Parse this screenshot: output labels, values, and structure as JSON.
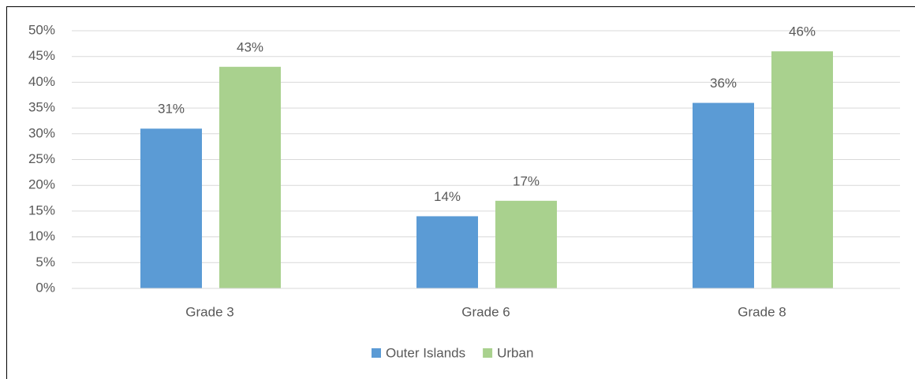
{
  "chart_data": {
    "type": "bar",
    "categories": [
      "Grade 3",
      "Grade 6",
      "Grade 8"
    ],
    "series": [
      {
        "name": "Outer Islands",
        "color": "#5b9bd5",
        "values": [
          31,
          14,
          36
        ],
        "value_labels": [
          "31%",
          "14%",
          "36%"
        ]
      },
      {
        "name": "Urban",
        "color": "#a9d18e",
        "values": [
          43,
          17,
          46
        ],
        "value_labels": [
          "43%",
          "17%",
          "46%"
        ]
      }
    ],
    "ylim": [
      0,
      50
    ],
    "yticks": [
      {
        "value": 0,
        "label": "0%"
      },
      {
        "value": 5,
        "label": "5%"
      },
      {
        "value": 10,
        "label": "10%"
      },
      {
        "value": 15,
        "label": "15%"
      },
      {
        "value": 20,
        "label": "20%"
      },
      {
        "value": 25,
        "label": "25%"
      },
      {
        "value": 30,
        "label": "30%"
      },
      {
        "value": 35,
        "label": "35%"
      },
      {
        "value": 40,
        "label": "40%"
      },
      {
        "value": 45,
        "label": "45%"
      },
      {
        "value": 50,
        "label": "50%"
      }
    ],
    "grid": true,
    "legend": "bottom"
  }
}
